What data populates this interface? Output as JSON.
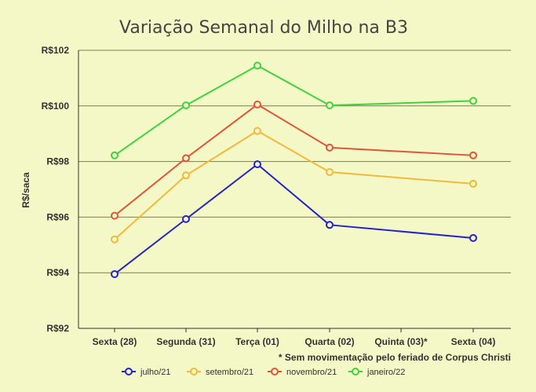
{
  "chart_data": {
    "type": "line",
    "title": "Variação Semanal do Milho na B3",
    "ylabel": "R$/saca",
    "xlabel": "",
    "categories": [
      "Sexta (28)",
      "Segunda (31)",
      "Terça (01)",
      "Quarta (02)",
      "Quinta (03)*",
      "Sexta (04)"
    ],
    "ylim": [
      92,
      102
    ],
    "yticks": [
      92,
      94,
      96,
      98,
      100,
      102
    ],
    "ytick_labels": [
      "R$92",
      "R$94",
      "R$96",
      "R$98",
      "R$100",
      "R$102"
    ],
    "grid": true,
    "legend_position": "bottom",
    "annotation": "* Sem movimentação pelo feriado de Corpus Christi",
    "series": [
      {
        "name": "julho/21",
        "color": "#2424c8",
        "values": [
          93.95,
          95.93,
          97.9,
          95.72,
          null,
          95.25
        ]
      },
      {
        "name": "setembro/21",
        "color": "#f2b93a",
        "values": [
          95.2,
          97.5,
          99.1,
          97.62,
          null,
          97.2
        ]
      },
      {
        "name": "novembro/21",
        "color": "#e0553a",
        "values": [
          96.05,
          98.12,
          100.05,
          98.5,
          null,
          98.22
        ]
      },
      {
        "name": "janeiro/22",
        "color": "#3fd43f",
        "values": [
          98.22,
          100.02,
          101.45,
          100.02,
          null,
          100.18
        ]
      }
    ]
  }
}
